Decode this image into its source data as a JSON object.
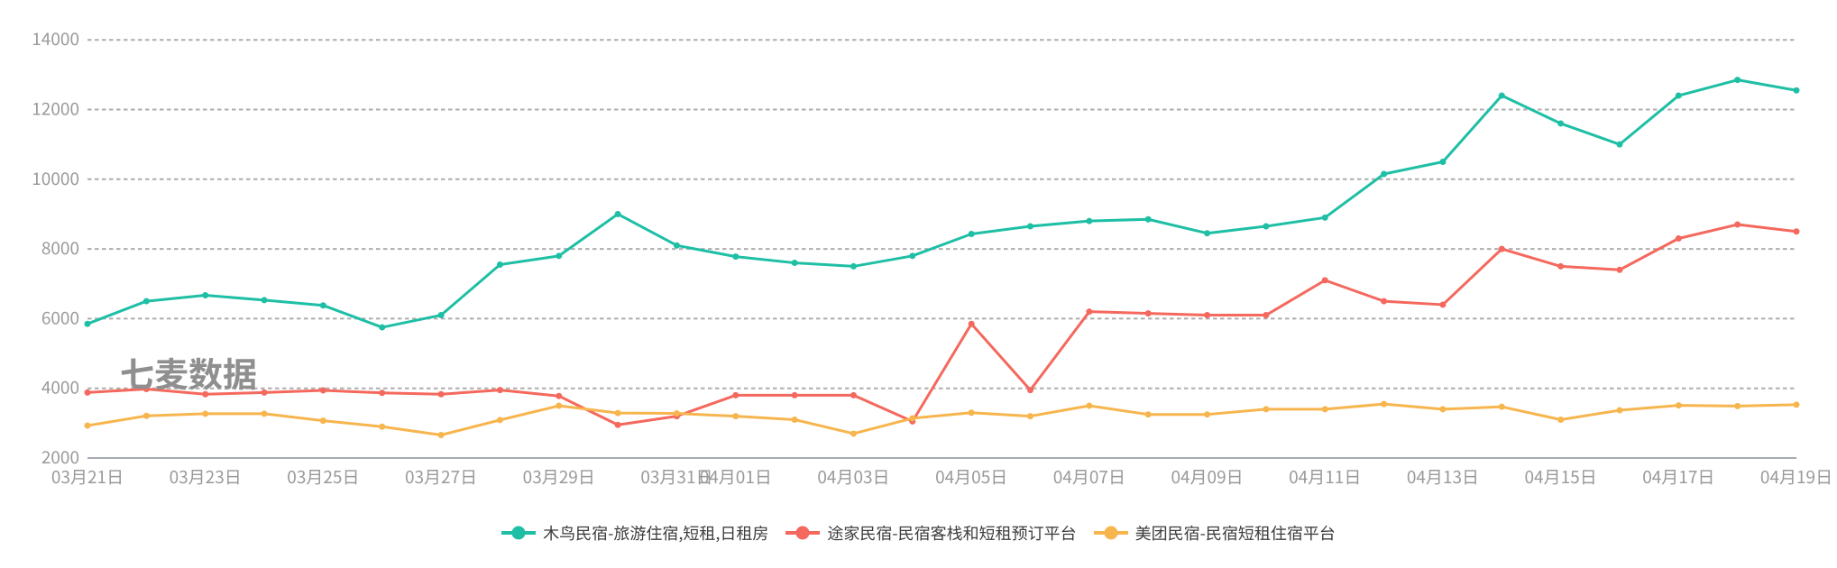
{
  "chart_data": {
    "type": "line",
    "title": "",
    "xlabel": "",
    "ylabel": "",
    "x": [
      "03月21日",
      "03月22日",
      "03月23日",
      "03月24日",
      "03月25日",
      "03月26日",
      "03月27日",
      "03月28日",
      "03月29日",
      "03月30日",
      "03月31日",
      "04月01日",
      "04月02日",
      "04月03日",
      "04月04日",
      "04月05日",
      "04月06日",
      "04月07日",
      "04月08日",
      "04月09日",
      "04月10日",
      "04月11日",
      "04月12日",
      "04月13日",
      "04月14日",
      "04月15日",
      "04月16日",
      "04月17日",
      "04月18日",
      "04月19日"
    ],
    "x_tick_indices": [
      0,
      2,
      4,
      6,
      8,
      10,
      11,
      13,
      15,
      17,
      19,
      21,
      23,
      25,
      27,
      29
    ],
    "y_axis": {
      "min": 2000,
      "max": 14000,
      "interval": 2000,
      "tick_labels": [
        "2000",
        "4000",
        "6000",
        "8000",
        "10000",
        "12000",
        "14000"
      ]
    },
    "grid": {
      "horizontal_lines": "dashed",
      "vertical_lines": "none"
    },
    "legend_position": "bottom-center",
    "series": [
      {
        "name": "木鸟民宿-旅游住宿,短租,日租房",
        "color": "#1ebfa5",
        "values": [
          5850,
          6500,
          6670,
          6530,
          6380,
          5750,
          6100,
          7550,
          7800,
          9000,
          8100,
          7780,
          7600,
          7500,
          7800,
          8430,
          8650,
          8800,
          8850,
          8450,
          8650,
          8900,
          10150,
          10500,
          12400,
          11600,
          11000,
          12400,
          12850,
          12550
        ]
      },
      {
        "name": "途家民宿-民宿客栈和短租预订平台",
        "color": "#f4685d",
        "values": [
          3880,
          3980,
          3830,
          3880,
          3940,
          3870,
          3830,
          3950,
          3780,
          2950,
          3200,
          3800,
          3800,
          3800,
          3050,
          5850,
          3950,
          6200,
          6150,
          6100,
          6100,
          7100,
          6500,
          6400,
          8000,
          7500,
          7400,
          8300,
          8700,
          8500
        ]
      },
      {
        "name": "美团民宿-民宿短租住宿平台",
        "color": "#f7b54e",
        "values": [
          2930,
          3210,
          3270,
          3270,
          3070,
          2900,
          2660,
          3090,
          3500,
          3290,
          3280,
          3200,
          3100,
          2700,
          3140,
          3300,
          3200,
          3500,
          3250,
          3250,
          3400,
          3400,
          3550,
          3400,
          3470,
          3100,
          3370,
          3510,
          3490,
          3530
        ]
      }
    ]
  },
  "watermark": {
    "text": "七麦数据",
    "color": "#8f8f8f"
  },
  "style_colors": {
    "background": "#ffffff",
    "gridline": "#adadad",
    "axis_line": "#a4aab3",
    "axis_label": "#999999",
    "legend_text": "#3d3d3d"
  }
}
